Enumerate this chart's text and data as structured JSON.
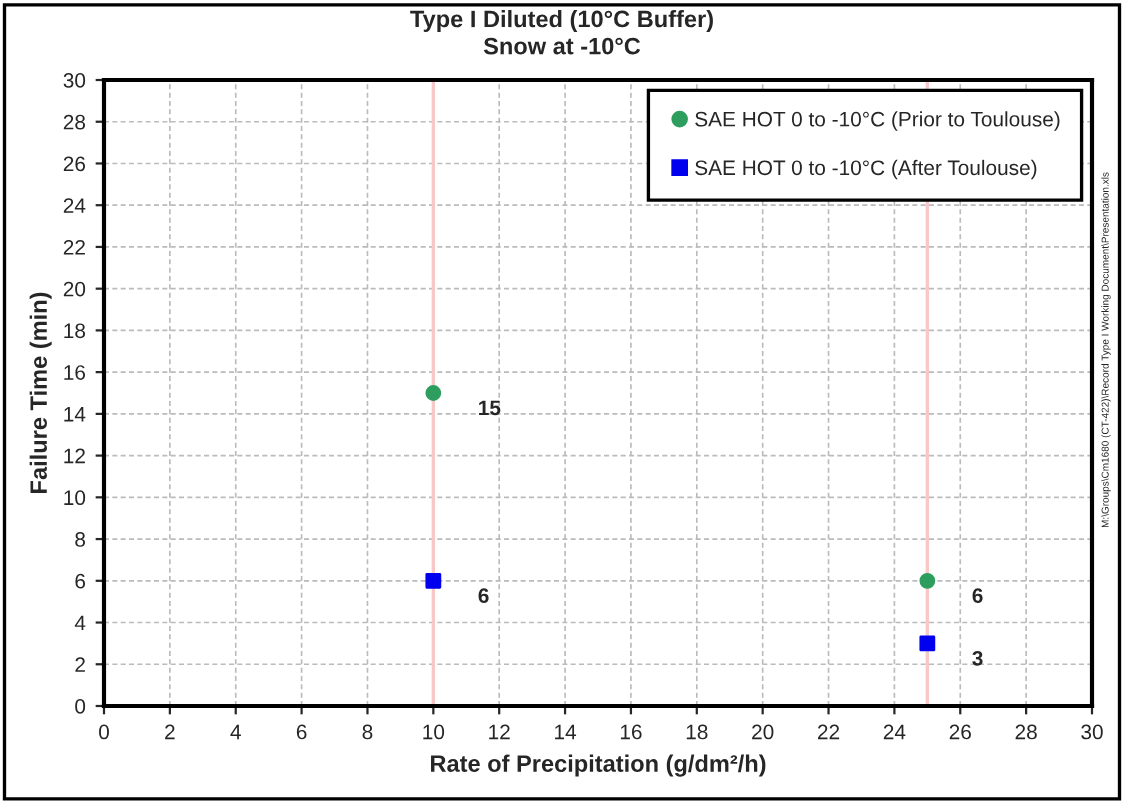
{
  "chart_data": {
    "type": "scatter",
    "title": "Type I Diluted (10°C Buffer)\nSnow at -10°C",
    "xlabel": "Rate of Precipitation (g/dm²/h)",
    "ylabel": "Failure Time (min)",
    "series": [
      {
        "name": "SAE HOT 0 to -10°C (Prior to Toulouse)",
        "color": "#2e9e5e",
        "marker": "circle",
        "values": [
          15,
          6
        ]
      },
      {
        "name": "SAE HOT 0 to -10°C (After Toulouse)",
        "color": "#0000ee",
        "marker": "square",
        "values": [
          6,
          3
        ]
      }
    ],
    "x": [
      10,
      25
    ],
    "data_labels": true,
    "ref_lines": [
      {
        "axis": "x",
        "value": 10,
        "color": "#f8c8c8"
      },
      {
        "axis": "x",
        "value": 25,
        "color": "#f8c8c8"
      }
    ],
    "xlim": [
      0,
      30
    ],
    "xticks": [
      0,
      2,
      4,
      6,
      8,
      10,
      12,
      14,
      16,
      18,
      20,
      22,
      24,
      26,
      28,
      30
    ],
    "ylim": [
      0,
      30
    ],
    "yticks": [
      0,
      2,
      4,
      6,
      8,
      10,
      12,
      14,
      16,
      18,
      20,
      22,
      24,
      26,
      28,
      30
    ],
    "grid": true,
    "legend": "top right",
    "annotations": [
      "M:\\Groups\\Cm1680 (CT-422)\\Record Type I Working Document\\Presentation.xls"
    ]
  }
}
